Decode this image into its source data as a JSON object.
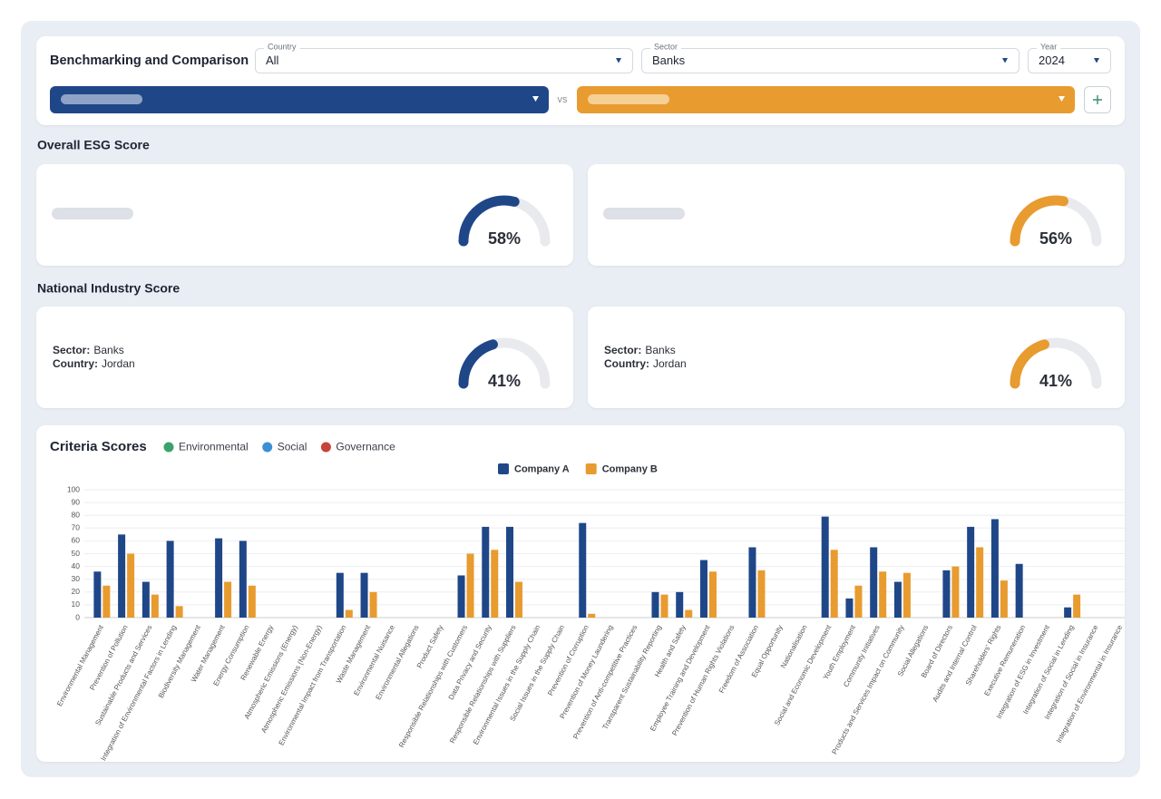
{
  "header": {
    "title": "Benchmarking and Comparison",
    "filters": [
      {
        "label": "Country",
        "value": "All"
      },
      {
        "label": "Sector",
        "value": "Banks"
      },
      {
        "label": "Year",
        "value": "2024"
      }
    ],
    "vs": "vs"
  },
  "overall": {
    "title": "Overall ESG Score",
    "scores": [
      {
        "value": 58,
        "label": "58%",
        "color": "#1f4788"
      },
      {
        "value": 56,
        "label": "56%",
        "color": "#e89b2f"
      }
    ]
  },
  "national": {
    "title": "National Industry Score",
    "cards": [
      {
        "sector_label": "Sector:",
        "sector": "Banks",
        "country_label": "Country:",
        "country": "Jordan",
        "value": 41,
        "label": "41%",
        "color": "#1f4788"
      },
      {
        "sector_label": "Sector:",
        "sector": "Banks",
        "country_label": "Country:",
        "country": "Jordan",
        "value": 41,
        "label": "41%",
        "color": "#e89b2f"
      }
    ]
  },
  "chart_data": {
    "type": "bar",
    "title": "Criteria Scores",
    "criteria_legend": [
      {
        "name": "Environmental",
        "color": "#3aa36b"
      },
      {
        "name": "Social",
        "color": "#3b8fd6"
      },
      {
        "name": "Governance",
        "color": "#c8413a"
      }
    ],
    "categories": [
      "Environmental Management",
      "Prevention of Pollution",
      "Sustainable Products and Services",
      "Integration of Environmental Factors in Lending",
      "Biodiversity Management",
      "Water Management",
      "Energy Consumption",
      "Renewable Energy",
      "Atmospheric Emissions (Energy)",
      "Atmospheric Emissions (Non-Energy)",
      "Environmental Impact from Transportation",
      "Waste Management",
      "Environmental Nuisance",
      "Environmental Allegations",
      "Product Safety",
      "Responsible Relationships with Customers",
      "Data Privacy and Security",
      "Responsible Relationships with Suppliers",
      "Environmental Issues in the Supply Chain",
      "Social Issues in the Supply Chain",
      "Prevention of Corruption",
      "Prevention of Money Laundering",
      "Prevention of Anti-competitive Practices",
      "Transparent Sustainability Reporting",
      "Health and Safety",
      "Employee Training and Development",
      "Prevention of Human Rights Violations",
      "Freedom of Association",
      "Equal Opportunity",
      "Nationalisation",
      "Social and Economic Development",
      "Youth Employment",
      "Community Initiatives",
      "Products and Services Impact on Community",
      "Social Allegations",
      "Board of Directors",
      "Audits and Internal Control",
      "Shareholders' Rights",
      "Executive Remuneration",
      "Integration of ESG in Investment",
      "Integration of Social in Lending",
      "Integration of Social in Insurance",
      "Integration of Environmental in Insurance"
    ],
    "series": [
      {
        "name": "Company A",
        "color": "#1f4788",
        "values": [
          36,
          65,
          28,
          60,
          0,
          62,
          60,
          0,
          0,
          0,
          35,
          35,
          0,
          0,
          0,
          33,
          71,
          71,
          0,
          0,
          74,
          0,
          0,
          20,
          20,
          45,
          0,
          55,
          0,
          0,
          79,
          15,
          55,
          28,
          0,
          37,
          71,
          77,
          42,
          0,
          8,
          0,
          0
        ]
      },
      {
        "name": "Company B",
        "color": "#e89b2f",
        "values": [
          25,
          50,
          18,
          9,
          0,
          28,
          25,
          0,
          0,
          0,
          6,
          20,
          0,
          0,
          0,
          50,
          53,
          28,
          0,
          0,
          3,
          0,
          0,
          18,
          6,
          36,
          0,
          37,
          0,
          0,
          53,
          25,
          36,
          35,
          0,
          40,
          55,
          29,
          0,
          0,
          18,
          0,
          0
        ]
      }
    ],
    "ylim": [
      0,
      100
    ],
    "yticks": [
      0,
      10,
      20,
      30,
      40,
      50,
      60,
      70,
      80,
      90,
      100
    ],
    "grid": true
  }
}
